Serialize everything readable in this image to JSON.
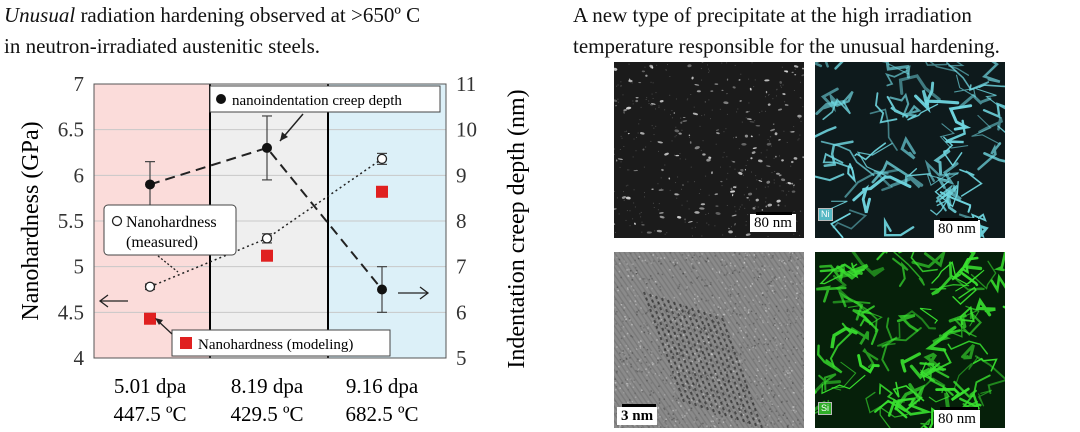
{
  "left_caption": {
    "line1_em": "Unusual",
    "line1_rest": " radiation hardening observed at >650º C",
    "line2": "in neutron-irradiated austenitic steels."
  },
  "right_caption": {
    "line1": "A new type of precipitate at the high irradiation",
    "line2": "temperature responsible for the unusual hardening."
  },
  "chart_data": {
    "type": "scatter",
    "ylabel": "Nanohardness (GPa)",
    "y2label": "Indentation creep depth (nm)",
    "ylim": [
      4,
      7
    ],
    "y2lim": [
      5,
      11
    ],
    "yticks": [
      "4",
      "4.5",
      "5",
      "5.5",
      "6",
      "6.5",
      "7"
    ],
    "y2ticks": [
      "5",
      "6",
      "7",
      "8",
      "9",
      "10",
      "11"
    ],
    "categories": [
      {
        "dpa": "5.01 dpa",
        "temp": "447.5 ºC"
      },
      {
        "dpa": "8.19 dpa",
        "temp": "429.5 ºC"
      },
      {
        "dpa": "9.16 dpa",
        "temp": "682.5 ºC"
      }
    ],
    "region_colors": [
      "#fbdcda",
      "#efefef",
      "#dcf0f8"
    ],
    "series": [
      {
        "name": "nanoindentation creep depth",
        "axis": "right",
        "marker": "filled-circle",
        "line": "dashed",
        "values": [
          8.8,
          9.6,
          6.5
        ],
        "errors": [
          0.5,
          0.7,
          0.5
        ]
      },
      {
        "name": "Nanohardness (measured)",
        "axis": "left",
        "marker": "open-circle",
        "line": "dotted",
        "values": [
          4.78,
          5.31,
          6.18
        ],
        "errors": [
          0.03,
          0.05,
          0.06
        ]
      },
      {
        "name": "Nanohardness (modeling)",
        "axis": "left",
        "marker": "red-square",
        "line": "none",
        "values": [
          4.43,
          5.12,
          5.82
        ]
      }
    ],
    "legend_labels": {
      "creep": "nanoindentation creep depth",
      "measured_1": "Nanohardness",
      "measured_2": "(measured)",
      "modeling": "Nanohardness (modeling)"
    },
    "colors": {
      "marker_red": "#e02020",
      "grid": "#c8c8c8"
    }
  },
  "micrographs": {
    "top_left_scale": "80 nm",
    "top_right_scale": "80 nm",
    "top_right_element": "Ni",
    "bottom_left_scale": "3 nm",
    "bottom_right_scale": "80 nm",
    "bottom_right_element": "Si",
    "colors": {
      "ni": "#6fd6e0",
      "si": "#39e12f",
      "dark": "#1b1b1b",
      "hrtem": "#8a8a8a"
    }
  }
}
